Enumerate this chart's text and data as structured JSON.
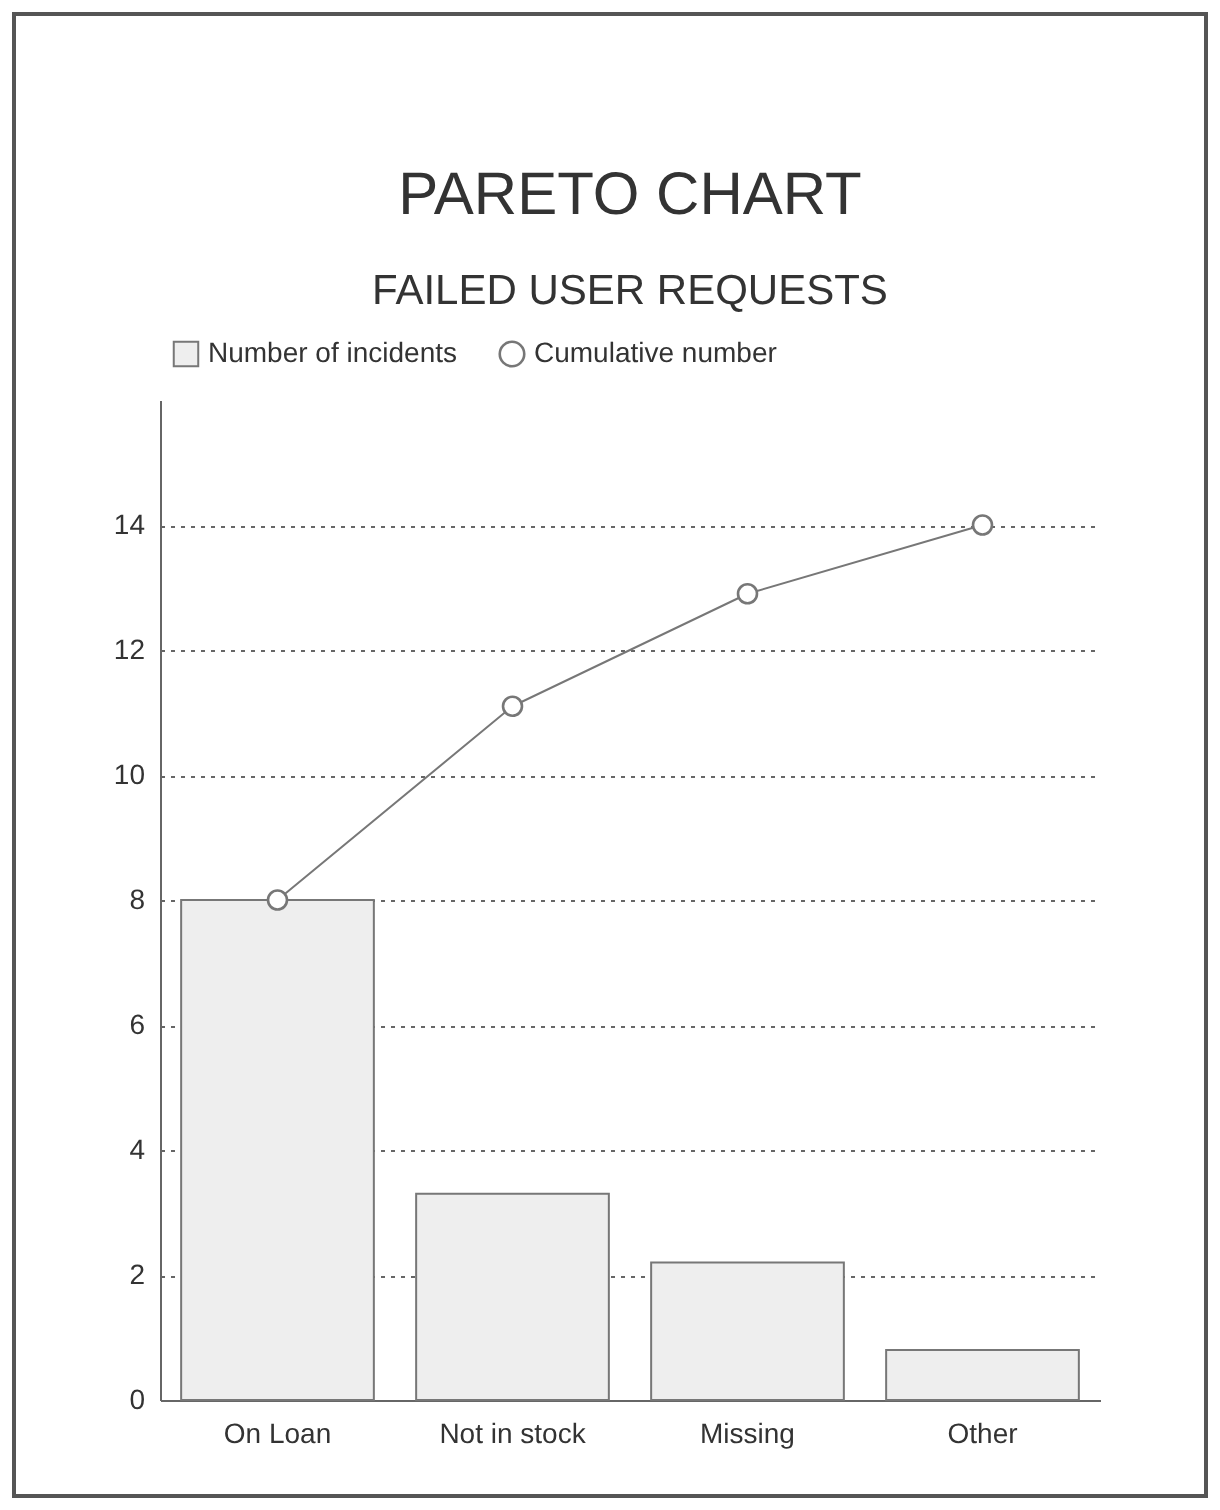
{
  "chart_data": {
    "type": "bar",
    "title": "PARETO CHART",
    "subtitle": "FAILED USER REQUESTS",
    "categories": [
      "On Loan",
      "Not in stock",
      "Missing",
      "Other"
    ],
    "series": [
      {
        "name": "Number of incidents",
        "color": "#eeeeee",
        "values": [
          8,
          3.3,
          2.2,
          0.8
        ]
      },
      {
        "name": "Cumulative number",
        "type": "line",
        "color": "#777777",
        "values": [
          8,
          11.1,
          12.9,
          14
        ]
      }
    ],
    "ylim": [
      0,
      16
    ],
    "yticks": [
      0,
      2,
      4,
      6,
      8,
      10,
      12,
      14
    ],
    "grid": "y",
    "legend": "top",
    "marker": "circle"
  }
}
